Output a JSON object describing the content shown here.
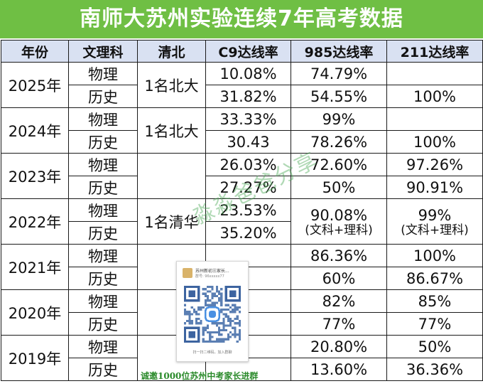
{
  "title": "南师大苏州实验连续7年高考数据",
  "headers": [
    "年份",
    "文理科",
    "清北",
    "C9达线率",
    "985达线率",
    "211达线率"
  ],
  "rows": [
    {
      "year": "2025年",
      "qingbei": "1名北大",
      "subjects": [
        {
          "subject": "物理",
          "c9": "10.08%",
          "r985": "74.79%",
          "r211": ""
        },
        {
          "subject": "历史",
          "c9": "31.82%",
          "r985": "54.55%",
          "r211": "100%"
        }
      ]
    },
    {
      "year": "2024年",
      "qingbei": "1名北大",
      "subjects": [
        {
          "subject": "物理",
          "c9": "33.33%",
          "r985": "99%",
          "r211": ""
        },
        {
          "subject": "历史",
          "c9": "30.43",
          "r985": "78.26%",
          "r211": "100%"
        }
      ]
    },
    {
      "year": "2023年",
      "qingbei": "",
      "subjects": [
        {
          "subject": "物理",
          "c9": "26.03%",
          "r985": "72.60%",
          "r211": "97.26%"
        },
        {
          "subject": "历史",
          "c9": "27.27%",
          "r985": "50%",
          "r211": "90.91%"
        }
      ]
    },
    {
      "year": "2022年",
      "qingbei": "1名清华",
      "merged": {
        "r985": "90.08%",
        "r985_note": "(文科+理科)",
        "r211": "99%",
        "r211_note": "(文科+理科)"
      },
      "subjects": [
        {
          "subject": "物理",
          "c9": "23.53%"
        },
        {
          "subject": "历史",
          "c9": "35.20%"
        }
      ]
    },
    {
      "year": "2021年",
      "qingbei": "",
      "subjects": [
        {
          "subject": "物理",
          "c9": "",
          "r985": "86.36%",
          "r211": "100%"
        },
        {
          "subject": "历史",
          "c9": "",
          "r985": "60%",
          "r211": "86.67%"
        }
      ]
    },
    {
      "year": "2020年",
      "qingbei": "",
      "subjects": [
        {
          "subject": "物理",
          "c9": "",
          "r985": "82%",
          "r211": "85%"
        },
        {
          "subject": "历史",
          "c9": "",
          "r985": "77%",
          "r211": "77%"
        }
      ]
    },
    {
      "year": "2019年",
      "qingbei": "",
      "subjects": [
        {
          "subject": "物理",
          "c9": "",
          "r985": "20.80%",
          "r211": "50%"
        },
        {
          "subject": "历史",
          "c9": "",
          "r985": "13.60%",
          "r211": "36.36%"
        }
      ]
    }
  ],
  "watermark": "淼淼爸爸分享",
  "qr_card": {
    "name": "苏州新初三家长...",
    "sub": "群号: 96xxxxx77",
    "note": "扫一扫二维码，加入群聊"
  },
  "promo": "诚邀1000位苏州中考家长进群",
  "colors": {
    "title_bg": "#6fbf44",
    "header_bg": "#d9e1f2",
    "watermark": "#50aa5a"
  }
}
